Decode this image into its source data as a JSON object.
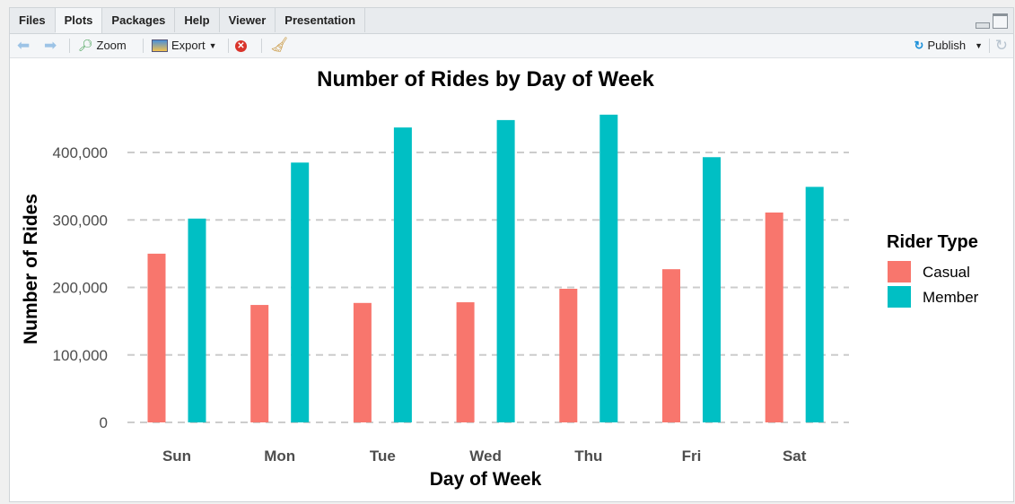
{
  "tabs": [
    {
      "label": "Files"
    },
    {
      "label": "Plots",
      "active": true
    },
    {
      "label": "Packages"
    },
    {
      "label": "Help"
    },
    {
      "label": "Viewer"
    },
    {
      "label": "Presentation"
    }
  ],
  "toolbar": {
    "zoom": "Zoom",
    "export": "Export",
    "publish": "Publish"
  },
  "chart_data": {
    "type": "bar",
    "title": "Number of Rides by Day of Week",
    "xlabel": "Day of Week",
    "ylabel": "Number of Rides",
    "categories": [
      "Sun",
      "Mon",
      "Tue",
      "Wed",
      "Thu",
      "Fri",
      "Sat"
    ],
    "yticks": [
      "0",
      "100,000",
      "200,000",
      "300,000",
      "400,000"
    ],
    "ylim": [
      0,
      460000
    ],
    "legend_title": "Rider Type",
    "legend_position": "right",
    "grid": "horizontal dashed",
    "series": [
      {
        "name": "Casual",
        "color": "#F8766D",
        "values": [
          250000,
          174000,
          177000,
          178000,
          198000,
          227000,
          311000
        ]
      },
      {
        "name": "Member",
        "color": "#00BFC4",
        "values": [
          302000,
          385000,
          437000,
          448000,
          456000,
          393000,
          349000
        ]
      }
    ]
  }
}
